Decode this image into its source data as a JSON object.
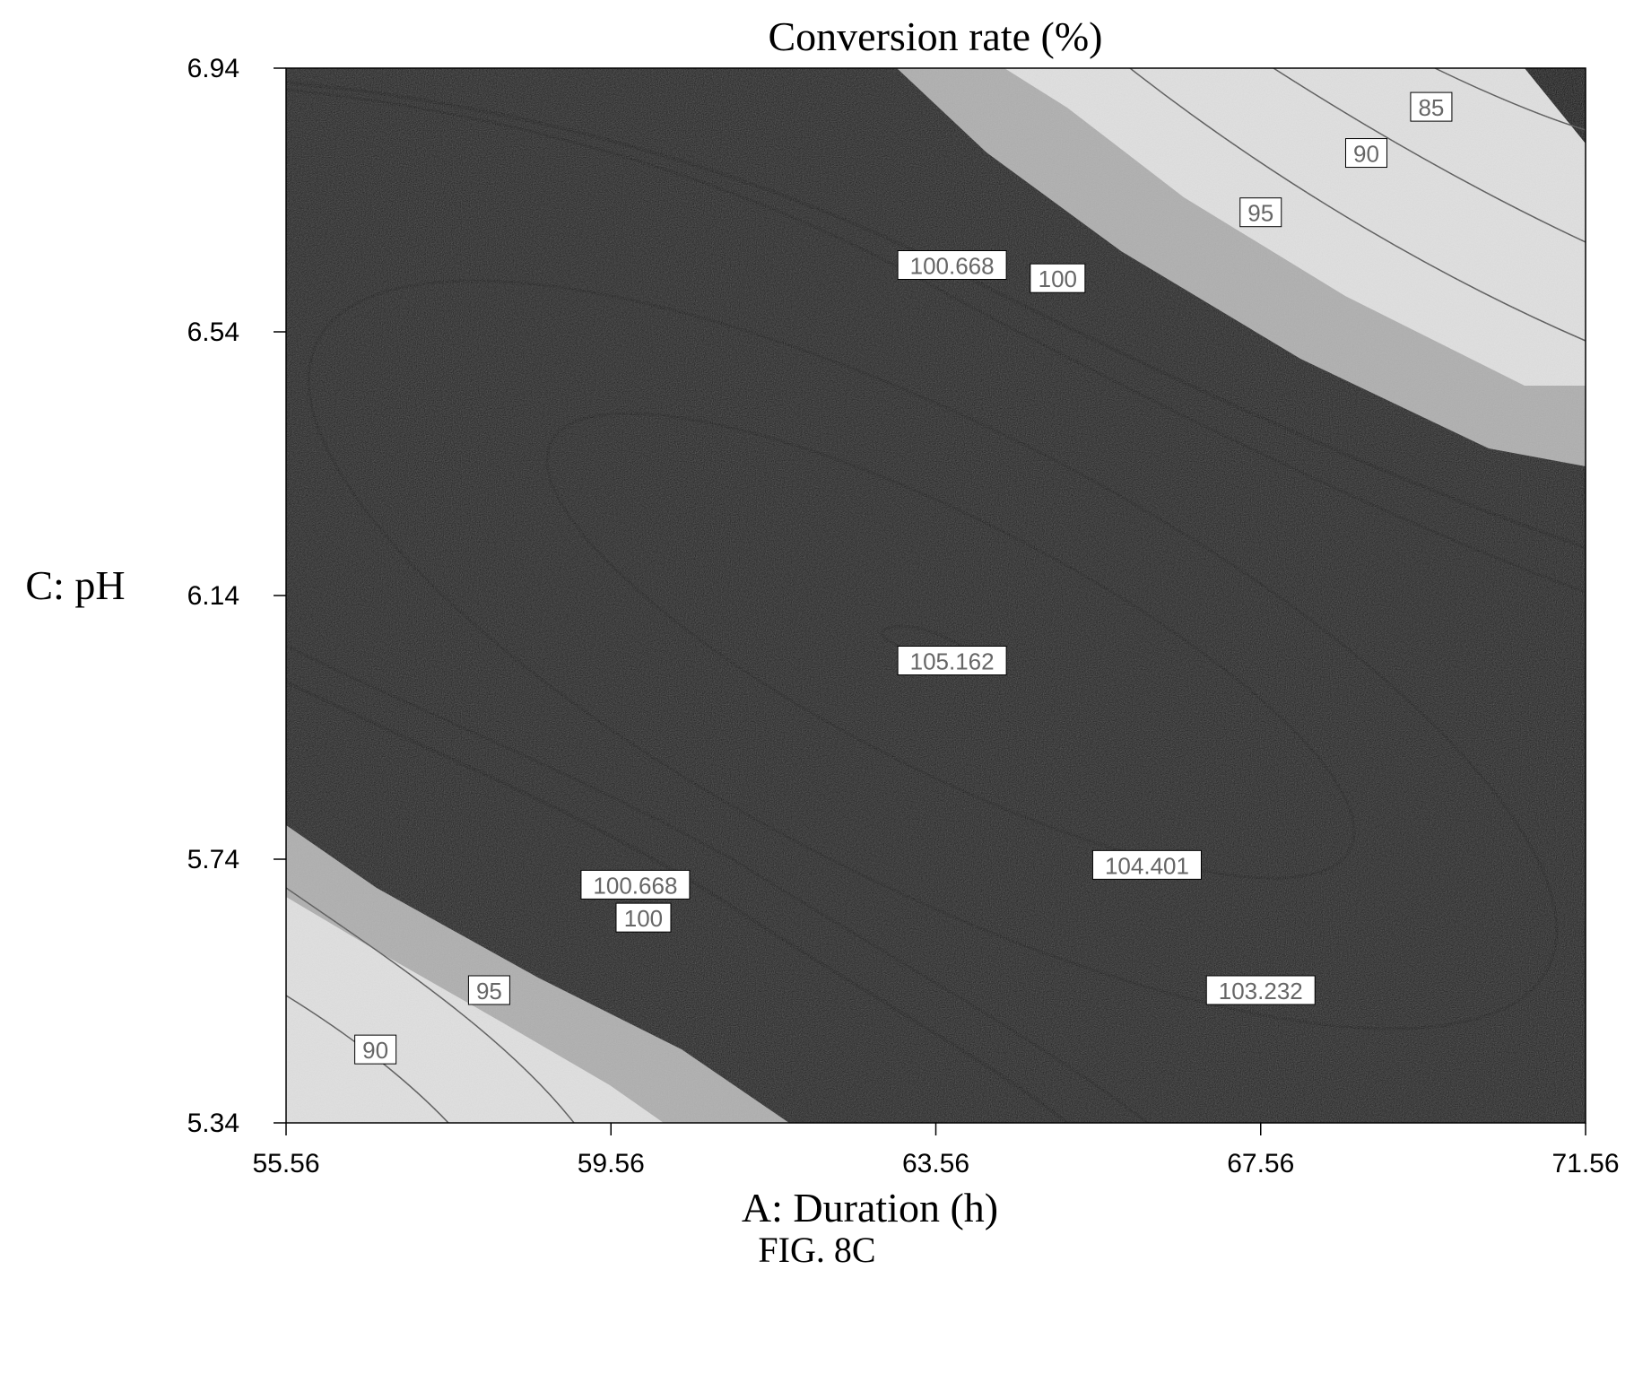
{
  "chart_data": {
    "type": "contour",
    "title": "Conversion rate (%)",
    "xlabel": "A: Duration (h)",
    "ylabel": "C: pH",
    "xlim": [
      55.56,
      71.56
    ],
    "ylim": [
      5.34,
      6.94
    ],
    "x_ticks": [
      "55.56",
      "59.56",
      "63.56",
      "67.56",
      "71.56"
    ],
    "y_ticks": [
      "6.94",
      "6.54",
      "6.14",
      "5.74",
      "5.34"
    ],
    "optimum": {
      "x": 63.56,
      "y": 6.14,
      "value": 105.162
    },
    "contour_levels": [
      85,
      90,
      95,
      100,
      100.668,
      103.232,
      104.401,
      105.162
    ],
    "contour_labels": [
      {
        "text": "85",
        "x": 69.66,
        "y": 6.88
      },
      {
        "text": "90",
        "x": 68.86,
        "y": 6.81
      },
      {
        "text": "95",
        "x": 67.56,
        "y": 6.72
      },
      {
        "text": "100.668",
        "x": 63.76,
        "y": 6.64
      },
      {
        "text": "100",
        "x": 65.06,
        "y": 6.62
      },
      {
        "text": "105.162",
        "x": 63.76,
        "y": 6.04
      },
      {
        "text": "104.401",
        "x": 66.16,
        "y": 5.73
      },
      {
        "text": "100.668",
        "x": 59.86,
        "y": 5.7
      },
      {
        "text": "100",
        "x": 59.96,
        "y": 5.65
      },
      {
        "text": "103.232",
        "x": 67.56,
        "y": 5.54
      },
      {
        "text": "95",
        "x": 58.06,
        "y": 5.54
      },
      {
        "text": "90",
        "x": 56.66,
        "y": 5.45
      }
    ],
    "grid": false,
    "legend": "none"
  },
  "figure": {
    "caption": "FIG. 8C"
  }
}
